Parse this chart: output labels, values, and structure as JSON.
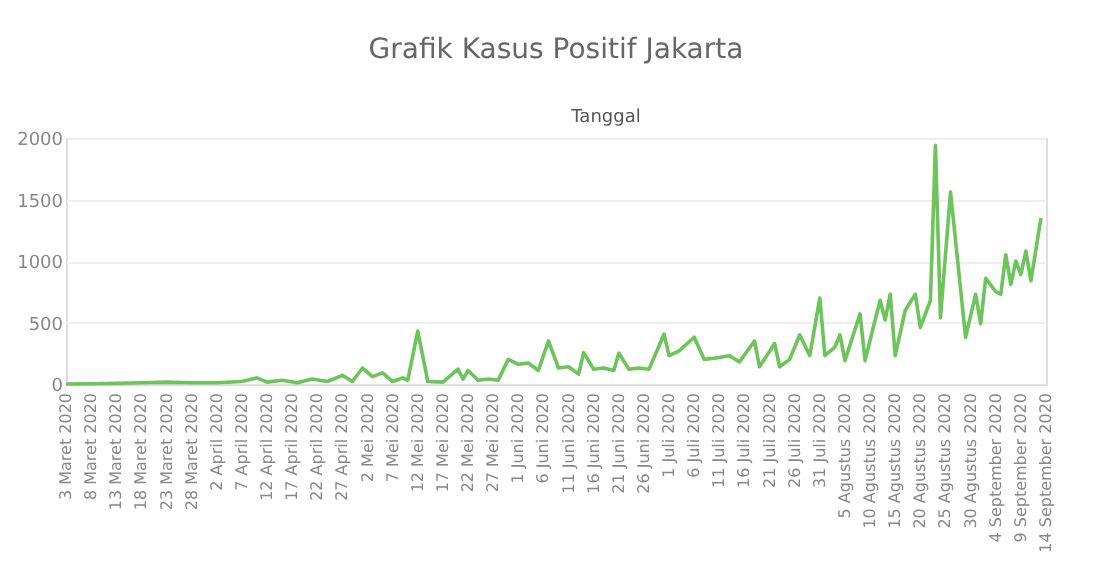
{
  "chart_data": {
    "type": "line",
    "title": "Grafik Kasus Positif Jakarta",
    "xlabel": "Tanggal",
    "x": [
      "2020-03-03",
      "2020-03-08",
      "2020-03-13",
      "2020-03-18",
      "2020-03-23",
      "2020-03-28",
      "2020-04-02",
      "2020-04-07",
      "2020-04-10",
      "2020-04-12",
      "2020-04-15",
      "2020-04-18",
      "2020-04-21",
      "2020-04-24",
      "2020-04-27",
      "2020-04-29",
      "2020-05-01",
      "2020-05-03",
      "2020-05-05",
      "2020-05-07",
      "2020-05-09",
      "2020-05-10",
      "2020-05-12",
      "2020-05-14",
      "2020-05-17",
      "2020-05-20",
      "2020-05-21",
      "2020-05-22",
      "2020-05-24",
      "2020-05-26",
      "2020-05-28",
      "2020-05-30",
      "2020-06-01",
      "2020-06-03",
      "2020-06-05",
      "2020-06-07",
      "2020-06-09",
      "2020-06-11",
      "2020-06-13",
      "2020-06-14",
      "2020-06-16",
      "2020-06-18",
      "2020-06-20",
      "2020-06-21",
      "2020-06-23",
      "2020-06-25",
      "2020-06-27",
      "2020-06-30",
      "2020-07-01",
      "2020-07-03",
      "2020-07-06",
      "2020-07-08",
      "2020-07-10",
      "2020-07-13",
      "2020-07-15",
      "2020-07-18",
      "2020-07-19",
      "2020-07-22",
      "2020-07-23",
      "2020-07-25",
      "2020-07-27",
      "2020-07-29",
      "2020-07-31",
      "2020-08-01",
      "2020-08-03",
      "2020-08-04",
      "2020-08-05",
      "2020-08-08",
      "2020-08-09",
      "2020-08-11",
      "2020-08-12",
      "2020-08-13",
      "2020-08-14",
      "2020-08-15",
      "2020-08-17",
      "2020-08-19",
      "2020-08-20",
      "2020-08-22",
      "2020-08-23",
      "2020-08-24",
      "2020-08-26",
      "2020-08-29",
      "2020-08-31",
      "2020-09-01",
      "2020-09-02",
      "2020-09-04",
      "2020-09-05",
      "2020-09-06",
      "2020-09-07",
      "2020-09-08",
      "2020-09-09",
      "2020-09-10",
      "2020-09-11",
      "2020-09-13"
    ],
    "series": [
      {
        "color": "#6cc45a",
        "values": [
          0,
          2,
          5,
          10,
          15,
          10,
          10,
          20,
          50,
          15,
          30,
          10,
          40,
          20,
          70,
          20,
          130,
          60,
          90,
          20,
          50,
          30,
          430,
          20,
          15,
          120,
          40,
          110,
          30,
          40,
          30,
          200,
          160,
          170,
          110,
          350,
          130,
          140,
          80,
          255,
          120,
          130,
          110,
          250,
          120,
          130,
          120,
          405,
          230,
          270,
          380,
          200,
          210,
          230,
          180,
          350,
          140,
          330,
          140,
          200,
          400,
          230,
          700,
          230,
          300,
          400,
          190,
          570,
          190,
          520,
          680,
          520,
          730,
          230,
          600,
          730,
          460,
          680,
          1940,
          540,
          1560,
          380,
          730,
          490,
          860,
          750,
          730,
          1050,
          810,
          1000,
          890,
          1080,
          840,
          1350
        ]
      }
    ],
    "xlim": [
      "2020-03-03",
      "2020-09-14"
    ],
    "xticks": [
      {
        "value": "2020-03-03",
        "label": "3 Maret 2020"
      },
      {
        "value": "2020-03-08",
        "label": "8 Maret 2020"
      },
      {
        "value": "2020-03-13",
        "label": "13 Maret 2020"
      },
      {
        "value": "2020-03-18",
        "label": "18 Maret 2020"
      },
      {
        "value": "2020-03-23",
        "label": "23 Maret 2020"
      },
      {
        "value": "2020-03-28",
        "label": "28 Maret 2020"
      },
      {
        "value": "2020-04-02",
        "label": "2 April 2020"
      },
      {
        "value": "2020-04-07",
        "label": "7 April 2020"
      },
      {
        "value": "2020-04-12",
        "label": "12 April 2020"
      },
      {
        "value": "2020-04-17",
        "label": "17 April 2020"
      },
      {
        "value": "2020-04-22",
        "label": "22 April 2020"
      },
      {
        "value": "2020-04-27",
        "label": "27 April 2020"
      },
      {
        "value": "2020-05-02",
        "label": "2 Mei 2020"
      },
      {
        "value": "2020-05-07",
        "label": "7 Mei 2020"
      },
      {
        "value": "2020-05-12",
        "label": "12 Mei 2020"
      },
      {
        "value": "2020-05-17",
        "label": "17 Mei 2020"
      },
      {
        "value": "2020-05-22",
        "label": "22 Mei 2020"
      },
      {
        "value": "2020-05-27",
        "label": "27 Mei 2020"
      },
      {
        "value": "2020-06-01",
        "label": "1 Juni 2020"
      },
      {
        "value": "2020-06-06",
        "label": "6 Juni 2020"
      },
      {
        "value": "2020-06-11",
        "label": "11 Juni 2020"
      },
      {
        "value": "2020-06-16",
        "label": "16 Juni 2020"
      },
      {
        "value": "2020-06-21",
        "label": "21 Juni 2020"
      },
      {
        "value": "2020-06-26",
        "label": "26 Juni 2020"
      },
      {
        "value": "2020-07-01",
        "label": "1 Juli 2020"
      },
      {
        "value": "2020-07-06",
        "label": "6 Juli 2020"
      },
      {
        "value": "2020-07-11",
        "label": "11 Juli 2020"
      },
      {
        "value": "2020-07-16",
        "label": "16 Juli 2020"
      },
      {
        "value": "2020-07-21",
        "label": "21 Juli 2020"
      },
      {
        "value": "2020-07-26",
        "label": "26 Juli 2020"
      },
      {
        "value": "2020-07-31",
        "label": "31 Juli 2020"
      },
      {
        "value": "2020-08-05",
        "label": "5 Agustus 2020"
      },
      {
        "value": "2020-08-10",
        "label": "10 Agustus 2020"
      },
      {
        "value": "2020-08-15",
        "label": "15 Agustus 2020"
      },
      {
        "value": "2020-08-20",
        "label": "20 Agustus 2020"
      },
      {
        "value": "2020-08-25",
        "label": "25 Agustus 2020"
      },
      {
        "value": "2020-08-30",
        "label": "30 Agustus 2020"
      },
      {
        "value": "2020-09-04",
        "label": "4 September 2020"
      },
      {
        "value": "2020-09-09",
        "label": "9 September 2020"
      },
      {
        "value": "2020-09-14",
        "label": "14 September 2020"
      }
    ],
    "ylim": [
      0,
      2000
    ],
    "yticks": [
      0,
      500,
      1000,
      1500,
      2000
    ],
    "grid": "y",
    "marker": "none",
    "line_style": "solid"
  }
}
